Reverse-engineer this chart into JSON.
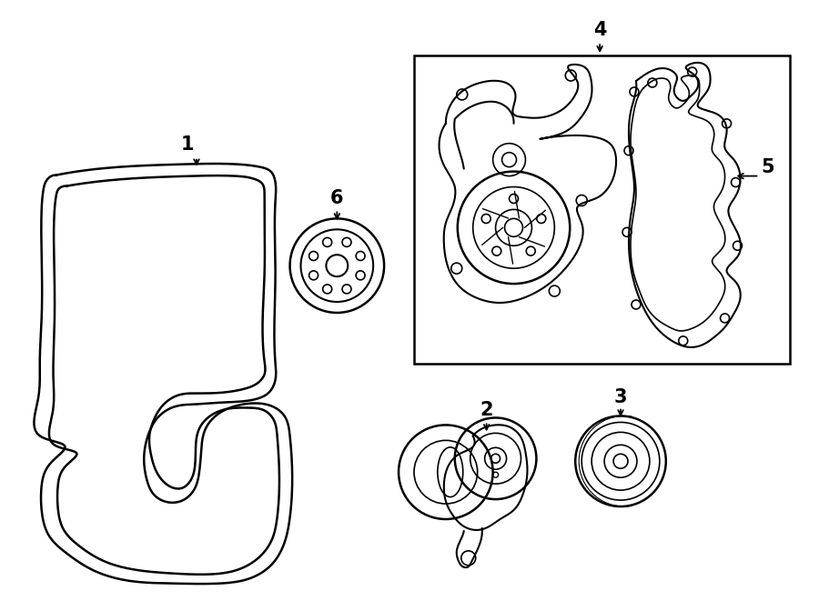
{
  "background_color": "#ffffff",
  "line_color": "#000000",
  "fig_width": 9.0,
  "fig_height": 6.61,
  "dpi": 100
}
